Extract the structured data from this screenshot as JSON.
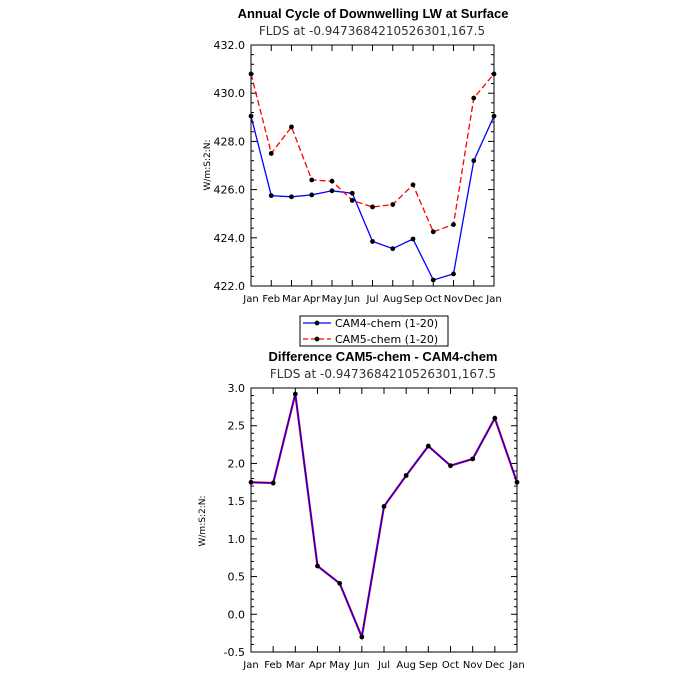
{
  "chart_data": [
    {
      "type": "line",
      "title": "Annual Cycle of Downwelling LW at Surface",
      "subtitle": "FLDS at -0.9473684210526301,167.5",
      "xlabel": "",
      "ylabel": "W/m:S:2:N:",
      "ylim": [
        422.0,
        432.0
      ],
      "yticks": [
        "422.0",
        "424.0",
        "426.0",
        "428.0",
        "430.0",
        "432.0"
      ],
      "categories": [
        "Jan",
        "Feb",
        "Mar",
        "Apr",
        "May",
        "Jun",
        "Jul",
        "Aug",
        "Sep",
        "Oct",
        "Nov",
        "Dec",
        "Jan"
      ],
      "series": [
        {
          "name": "CAM4-chem (1-20)",
          "color": "#0000ff",
          "dash": "solid",
          "values": [
            429.05,
            425.75,
            425.7,
            425.78,
            425.95,
            425.85,
            423.85,
            423.55,
            423.95,
            422.25,
            422.5,
            427.2,
            429.05
          ]
        },
        {
          "name": "CAM5-chem (1-20)",
          "color": "#ff0000",
          "dash": "dashed",
          "values": [
            430.8,
            427.5,
            428.6,
            426.4,
            426.35,
            425.55,
            425.28,
            425.38,
            426.2,
            424.25,
            424.55,
            429.8,
            430.8
          ]
        }
      ],
      "legend": {
        "position": "below",
        "entries": [
          "CAM4-chem (1-20)",
          "CAM5-chem (1-20)"
        ]
      }
    },
    {
      "type": "line",
      "title": "Difference CAM5-chem - CAM4-chem",
      "subtitle": "FLDS at -0.9473684210526301,167.5",
      "xlabel": "",
      "ylabel": "W/m:S:2:N:",
      "ylim": [
        -0.5,
        3.0
      ],
      "yticks": [
        "-0.5",
        "0.0",
        "0.5",
        "1.0",
        "1.5",
        "2.0",
        "2.5",
        "3.0"
      ],
      "categories": [
        "Jan",
        "Feb",
        "Mar",
        "Apr",
        "May",
        "Jun",
        "Jul",
        "Aug",
        "Sep",
        "Oct",
        "Nov",
        "Dec",
        "Jan"
      ],
      "series": [
        {
          "name": "CAM5-chem - CAM4-chem",
          "color": "#0000ff",
          "overlay_color": "#ff0000",
          "dash": "solid",
          "values": [
            1.75,
            1.74,
            2.92,
            0.64,
            0.41,
            -0.3,
            1.43,
            1.84,
            2.23,
            1.97,
            2.06,
            2.6,
            1.75
          ]
        }
      ]
    }
  ]
}
